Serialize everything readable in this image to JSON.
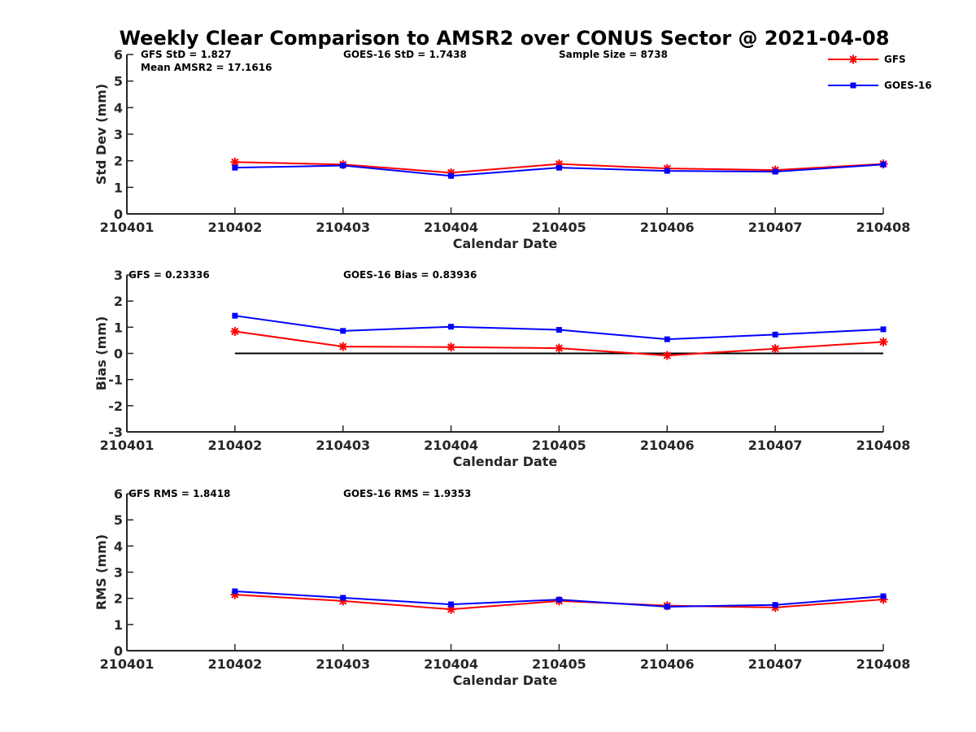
{
  "figure": {
    "title": "Weekly Clear Comparison to AMSR2 over CONUS Sector @ 2021-04-08"
  },
  "legend": {
    "placement": "top-right",
    "entries": [
      {
        "label": "GFS",
        "color": "#ff0000",
        "marker": "asterisk"
      },
      {
        "label": "GOES-16",
        "color": "#0000ff",
        "marker": "square"
      }
    ]
  },
  "colors": {
    "gfs": "#ff0000",
    "goes16": "#0000ff",
    "axis": "#262626",
    "zero_line": "#000000"
  },
  "chart_data": [
    {
      "type": "line",
      "xlabel": "Calendar Date",
      "ylabel": "Std Dev (mm)",
      "categories": [
        "210401",
        "210402",
        "210403",
        "210404",
        "210405",
        "210406",
        "210407",
        "210408"
      ],
      "ylim": [
        0,
        6
      ],
      "yticks": [
        "0",
        "1",
        "2",
        "3",
        "4",
        "5",
        "6"
      ],
      "grid": false,
      "annotations": [
        "GFS StD = 1.827",
        "GOES-16 StD = 1.7438",
        "Sample Size = 8738",
        "Mean AMSR2 = 17.1616"
      ],
      "series": [
        {
          "name": "GFS",
          "color": "#ff0000",
          "marker": "asterisk",
          "x": [
            "210402",
            "210403",
            "210404",
            "210405",
            "210406",
            "210407",
            "210408"
          ],
          "values": [
            1.95,
            1.86,
            1.55,
            1.88,
            1.71,
            1.65,
            1.88
          ]
        },
        {
          "name": "GOES-16",
          "color": "#0000ff",
          "marker": "square",
          "x": [
            "210402",
            "210403",
            "210404",
            "210405",
            "210406",
            "210407",
            "210408"
          ],
          "values": [
            1.74,
            1.82,
            1.43,
            1.74,
            1.62,
            1.59,
            1.86
          ]
        }
      ]
    },
    {
      "type": "line",
      "xlabel": "Calendar Date",
      "ylabel": "Bias (mm)",
      "categories": [
        "210401",
        "210402",
        "210403",
        "210404",
        "210405",
        "210406",
        "210407",
        "210408"
      ],
      "ylim": [
        -3,
        3
      ],
      "yticks": [
        "-3",
        "-2",
        "-1",
        "0",
        "1",
        "2",
        "3"
      ],
      "grid": false,
      "zero_line": {
        "y": 0,
        "x_from": "210402",
        "x_to": "210408"
      },
      "annotations": [
        "GFS = 0.23336",
        "GOES-16 Bias  = 0.83936"
      ],
      "series": [
        {
          "name": "GFS",
          "color": "#ff0000",
          "marker": "asterisk",
          "x": [
            "210402",
            "210403",
            "210404",
            "210405",
            "210406",
            "210407",
            "210408"
          ],
          "values": [
            0.84,
            0.26,
            0.24,
            0.2,
            -0.08,
            0.18,
            0.44
          ]
        },
        {
          "name": "GOES-16",
          "color": "#0000ff",
          "marker": "square",
          "x": [
            "210402",
            "210403",
            "210404",
            "210405",
            "210406",
            "210407",
            "210408"
          ],
          "values": [
            1.44,
            0.86,
            1.02,
            0.9,
            0.54,
            0.72,
            0.92
          ]
        }
      ]
    },
    {
      "type": "line",
      "xlabel": "Calendar Date",
      "ylabel": "RMS (mm)",
      "categories": [
        "210401",
        "210402",
        "210403",
        "210404",
        "210405",
        "210406",
        "210407",
        "210408"
      ],
      "ylim": [
        0,
        6
      ],
      "yticks": [
        "0",
        "1",
        "2",
        "3",
        "4",
        "5",
        "6"
      ],
      "grid": false,
      "annotations": [
        "GFS RMS = 1.8418",
        "GOES-16 RMS = 1.9353"
      ],
      "series": [
        {
          "name": "GFS",
          "color": "#ff0000",
          "marker": "asterisk",
          "x": [
            "210402",
            "210403",
            "210404",
            "210405",
            "210406",
            "210407",
            "210408"
          ],
          "values": [
            2.14,
            1.9,
            1.58,
            1.9,
            1.72,
            1.65,
            1.96
          ]
        },
        {
          "name": "GOES-16",
          "color": "#0000ff",
          "marker": "square",
          "x": [
            "210402",
            "210403",
            "210404",
            "210405",
            "210406",
            "210407",
            "210408"
          ],
          "values": [
            2.27,
            2.02,
            1.77,
            1.95,
            1.68,
            1.75,
            2.08
          ]
        }
      ]
    }
  ]
}
